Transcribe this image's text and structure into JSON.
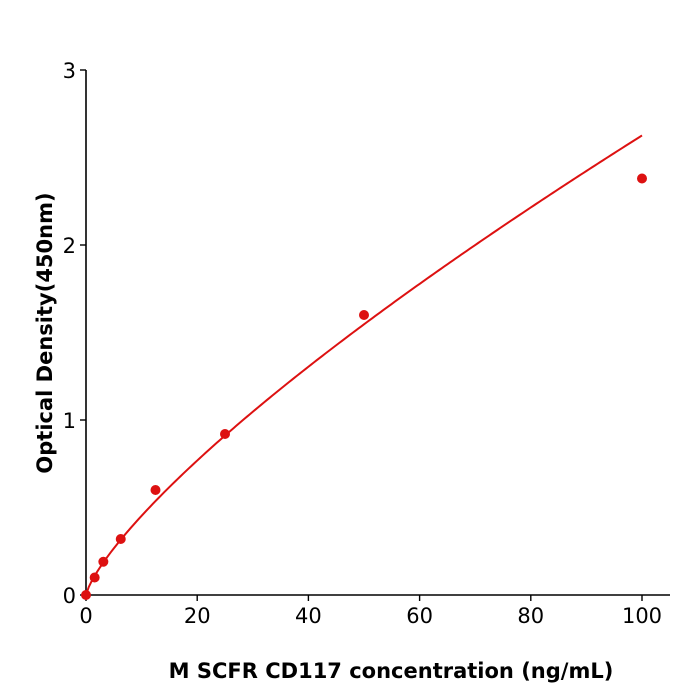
{
  "chart_data": {
    "type": "scatter",
    "title": "",
    "xlabel": "M  SCFR  CD117 concentration (ng/mL)",
    "ylabel": "Optical Density(450nm)",
    "xlim": [
      0,
      105
    ],
    "ylim": [
      0,
      3
    ],
    "xticks": [
      0,
      20,
      40,
      60,
      80,
      100
    ],
    "yticks": [
      0,
      1,
      2,
      3
    ],
    "grid": false,
    "legend": "none",
    "color": "#dd1111",
    "series": [
      {
        "x": [
          0,
          1.56,
          3.12,
          6.25,
          12.5,
          25,
          50,
          100
        ],
        "y": [
          0.0,
          0.1,
          0.19,
          0.32,
          0.6,
          0.92,
          1.6,
          2.38
        ]
      }
    ],
    "fit_curve": true
  }
}
